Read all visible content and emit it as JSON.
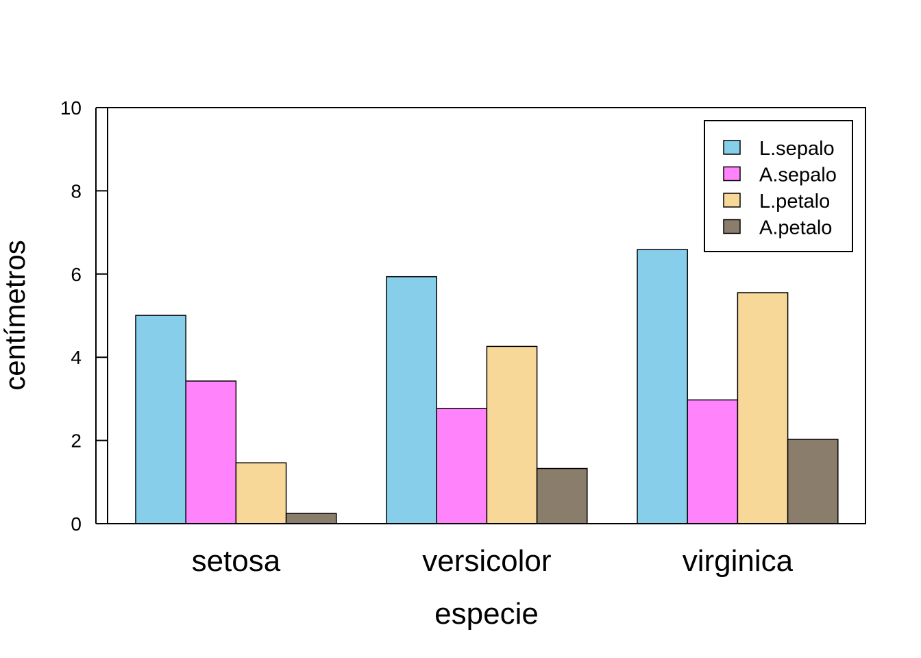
{
  "chart_data": {
    "type": "bar",
    "title": "",
    "xlabel": "especie",
    "ylabel": "centímetros",
    "ylim": [
      0,
      10
    ],
    "yticks": [
      0,
      2,
      4,
      6,
      8,
      10
    ],
    "categories": [
      "setosa",
      "versicolor",
      "virginica"
    ],
    "series": [
      {
        "name": "L.sepalo",
        "color": "#87CEEB",
        "values": [
          5.006,
          5.936,
          6.588
        ]
      },
      {
        "name": "A.sepalo",
        "color": "#FF83FA",
        "values": [
          3.428,
          2.77,
          2.974
        ]
      },
      {
        "name": "L.petalo",
        "color": "#F7D898",
        "values": [
          1.462,
          4.26,
          5.552
        ]
      },
      {
        "name": "A.petalo",
        "color": "#8B7D6B",
        "values": [
          0.246,
          1.326,
          2.026
        ]
      }
    ],
    "grid": false,
    "legend_position": "top-right"
  }
}
